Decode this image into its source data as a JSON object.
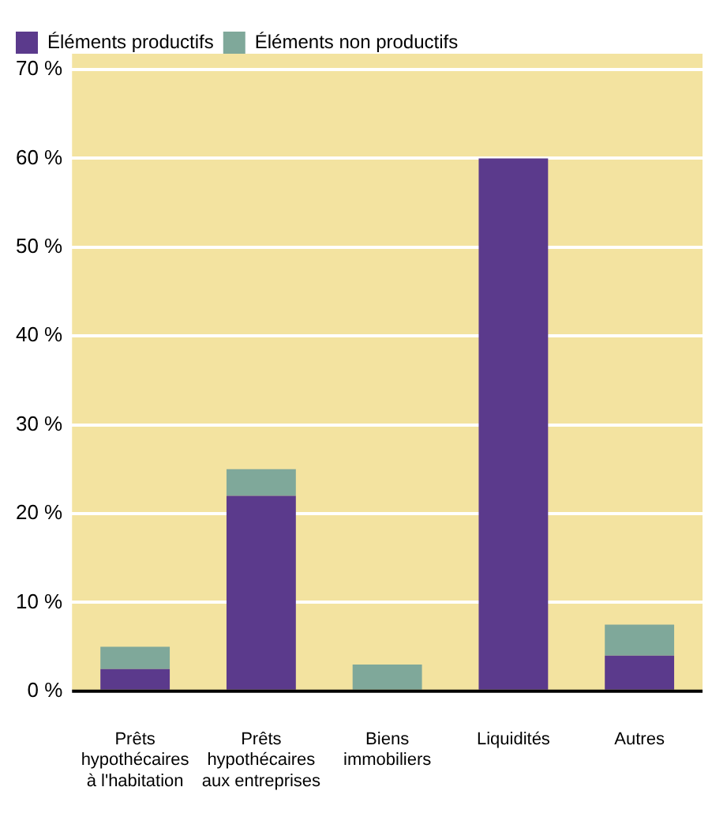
{
  "chart_data": {
    "type": "bar",
    "stacked": true,
    "categories": [
      "Prêts hypothécaires à l'habitation",
      "Prêts hypothécaires aux entreprises",
      "Biens immobiliers",
      "Liquidités",
      "Autres"
    ],
    "series": [
      {
        "name": "Éléments productifs",
        "color": "#5b3a8c",
        "values": [
          2.5,
          22,
          0,
          60,
          4
        ]
      },
      {
        "name": "Éléments non productifs",
        "color": "#7fa89a",
        "values": [
          2.5,
          3,
          3,
          0,
          3.5
        ]
      }
    ],
    "ylim": [
      0,
      70
    ],
    "yticks": [
      {
        "value": 0,
        "label": "0 %"
      },
      {
        "value": 10,
        "label": "10 %"
      },
      {
        "value": 20,
        "label": "20 %"
      },
      {
        "value": 30,
        "label": "30 %"
      },
      {
        "value": 40,
        "label": "40 %"
      },
      {
        "value": 50,
        "label": "50 %"
      },
      {
        "value": 60,
        "label": "60 %"
      },
      {
        "value": 70,
        "label": "70 %"
      }
    ],
    "grid": "y",
    "legend": "top left"
  }
}
